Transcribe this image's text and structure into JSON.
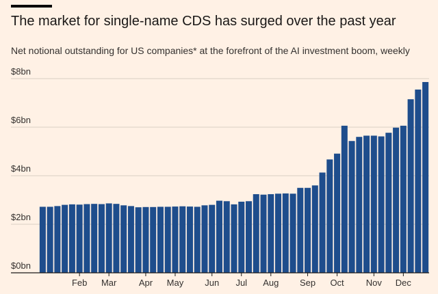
{
  "header": {
    "title": "The market for single-name CDS has surged over the past year",
    "subtitle": "Net notional outstanding for US companies* at the forefront of the AI investment boom, weekly"
  },
  "colors": {
    "background": "#fff1e5",
    "bar": "#1e4d8c",
    "gridline": "#d9cfc4",
    "text": "#33302e"
  },
  "chart_data": {
    "type": "bar",
    "title": "The market for single-name CDS has surged over the past year",
    "subtitle": "Net notional outstanding for US companies* at the forefront of the AI investment boom, weekly",
    "xlabel": "",
    "ylabel": "",
    "ylim": [
      0,
      8
    ],
    "unit": "$bn",
    "y_ticks": [
      {
        "value": 0,
        "label": "$0bn"
      },
      {
        "value": 2,
        "label": "$2bn"
      },
      {
        "value": 4,
        "label": "$4bn"
      },
      {
        "value": 6,
        "label": "$6bn"
      },
      {
        "value": 8,
        "label": "$8bn"
      }
    ],
    "x_ticks": [
      {
        "index": 5,
        "label": "Feb"
      },
      {
        "index": 9,
        "label": "Mar"
      },
      {
        "index": 14,
        "label": "Apr"
      },
      {
        "index": 18,
        "label": "May"
      },
      {
        "index": 23,
        "label": "Jun"
      },
      {
        "index": 27,
        "label": "Jul"
      },
      {
        "index": 31,
        "label": "Aug"
      },
      {
        "index": 36,
        "label": "Sep"
      },
      {
        "index": 40,
        "label": "Oct"
      },
      {
        "index": 45,
        "label": "Nov"
      },
      {
        "index": 49,
        "label": "Dec"
      }
    ],
    "grid": true,
    "values": [
      2.72,
      2.72,
      2.75,
      2.8,
      2.82,
      2.81,
      2.83,
      2.84,
      2.83,
      2.86,
      2.84,
      2.78,
      2.75,
      2.7,
      2.71,
      2.71,
      2.72,
      2.72,
      2.73,
      2.74,
      2.73,
      2.72,
      2.78,
      2.8,
      2.97,
      2.95,
      2.82,
      2.93,
      2.95,
      3.24,
      3.22,
      3.24,
      3.26,
      3.27,
      3.26,
      3.5,
      3.5,
      3.6,
      4.13,
      4.67,
      4.91,
      6.06,
      5.43,
      5.6,
      5.65,
      5.65,
      5.62,
      5.77,
      5.98,
      6.06,
      7.15,
      7.55,
      7.86
    ]
  }
}
